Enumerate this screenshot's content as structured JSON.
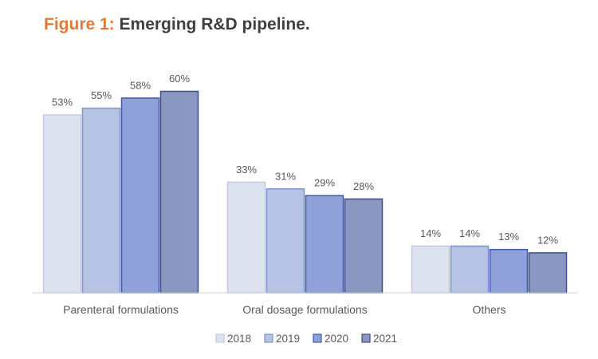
{
  "title": {
    "prefix": "Figure 1:",
    "text": "Emerging R&D pipeline."
  },
  "chart_data": {
    "type": "bar",
    "categories": [
      "Parenteral formulations",
      "Oral dosage formulations",
      "Others"
    ],
    "series": [
      {
        "name": "2018",
        "values": [
          53,
          33,
          14
        ],
        "value_labels": [
          "53%",
          "33%",
          "14%"
        ],
        "fill": "#dde2f0",
        "stroke": "#c3cbe3"
      },
      {
        "name": "2019",
        "values": [
          55,
          31,
          14
        ],
        "value_labels": [
          "55%",
          "31%",
          "14%"
        ],
        "fill": "#b7c3e5",
        "stroke": "#7d94cc"
      },
      {
        "name": "2020",
        "values": [
          58,
          29,
          13
        ],
        "value_labels": [
          "58%",
          "29%",
          "13%"
        ],
        "fill": "#8fa1d8",
        "stroke": "#3f5aa6"
      },
      {
        "name": "2021",
        "values": [
          60,
          28,
          12
        ],
        "value_labels": [
          "60%",
          "28%",
          "12%"
        ],
        "fill": "#8a97c0",
        "stroke": "#3e4f8f"
      }
    ],
    "ylim": [
      0,
      60
    ],
    "grid": false,
    "legend_position": "bottom"
  }
}
